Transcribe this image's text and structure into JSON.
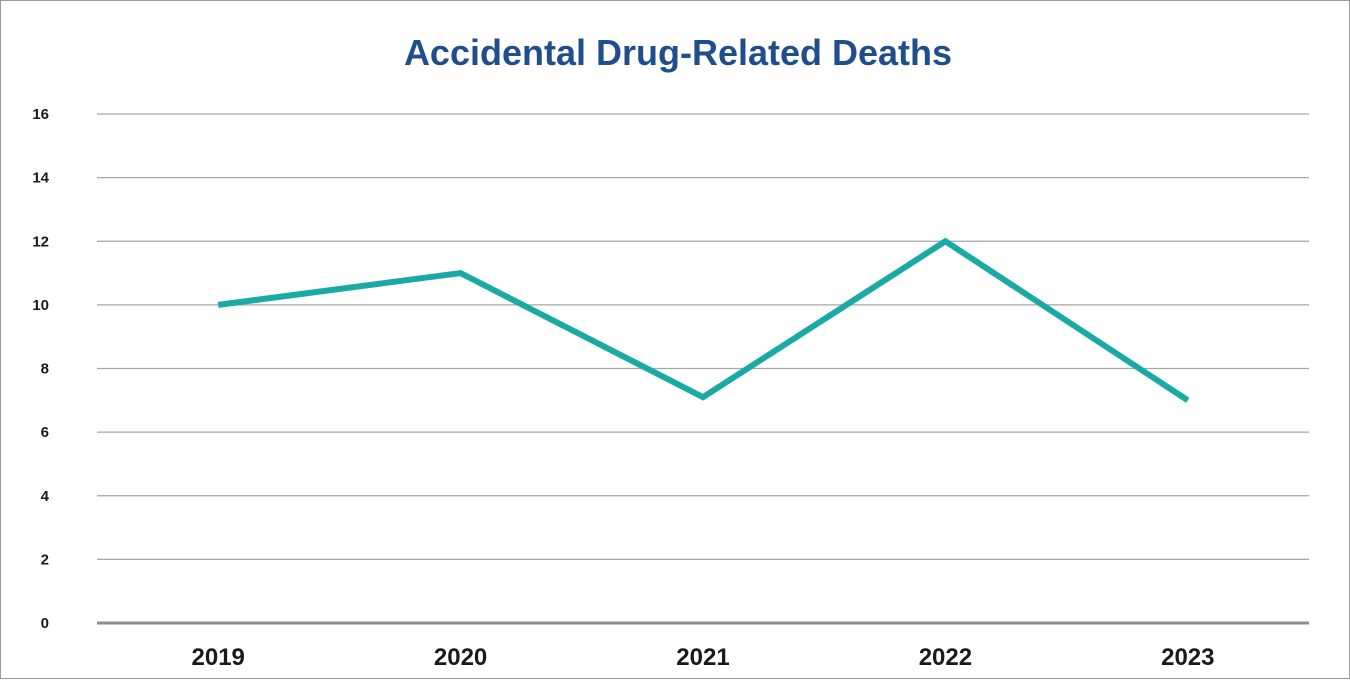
{
  "chart_data": {
    "type": "line",
    "title": "Accidental Drug-Related Deaths",
    "xlabel": "",
    "ylabel": "",
    "categories": [
      "2019",
      "2020",
      "2021",
      "2022",
      "2023"
    ],
    "series": [
      {
        "values": [
          10,
          11,
          7.1,
          12,
          7
        ]
      }
    ],
    "ylim": [
      0,
      16
    ],
    "yticks": [
      "0",
      "2",
      "4",
      "6",
      "8",
      "10",
      "12",
      "14",
      "16"
    ],
    "grid": true,
    "legend": "none",
    "colors": {
      "title": "#1f4e8c",
      "line": "#19aaa5",
      "grid": "#a6a6a6",
      "axis": "#8c8c8c"
    }
  }
}
